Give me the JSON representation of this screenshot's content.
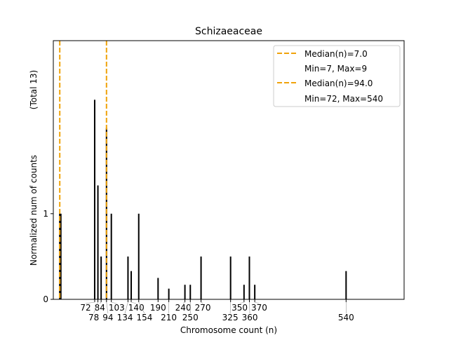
{
  "chart_data": {
    "type": "bar",
    "title": "Schizaeaceae",
    "xlabel": "Chromosome count (n)",
    "ylabel": "Normalized num of counts",
    "ylabel_total": "(Total 13)",
    "xlim": [
      -5,
      648
    ],
    "ylim": [
      0,
      3.02
    ],
    "yticks": [
      0,
      1
    ],
    "xticks": [
      72,
      78,
      84,
      94,
      103,
      134,
      140,
      154,
      190,
      210,
      240,
      250,
      270,
      325,
      350,
      360,
      370,
      540
    ],
    "bars": [
      {
        "x": 7,
        "y": 1.0
      },
      {
        "x": 9,
        "y": 1.0
      },
      {
        "x": 72,
        "y": 2.33
      },
      {
        "x": 78,
        "y": 1.33
      },
      {
        "x": 84,
        "y": 0.5
      },
      {
        "x": 94,
        "y": 2.0
      },
      {
        "x": 103,
        "y": 1.0
      },
      {
        "x": 134,
        "y": 0.5
      },
      {
        "x": 140,
        "y": 0.33
      },
      {
        "x": 154,
        "y": 1.0
      },
      {
        "x": 190,
        "y": 0.25
      },
      {
        "x": 210,
        "y": 0.125
      },
      {
        "x": 240,
        "y": 0.17
      },
      {
        "x": 250,
        "y": 0.17
      },
      {
        "x": 270,
        "y": 0.5
      },
      {
        "x": 325,
        "y": 0.5
      },
      {
        "x": 350,
        "y": 0.17
      },
      {
        "x": 360,
        "y": 0.5
      },
      {
        "x": 370,
        "y": 0.17
      },
      {
        "x": 540,
        "y": 0.33
      }
    ],
    "medians": [
      7.0,
      94.0
    ],
    "legend": {
      "placement": "top-right",
      "entries": [
        {
          "label": "Median(n)=7.0",
          "sub": "Min=7, Max=9"
        },
        {
          "label": "Median(n)=94.0",
          "sub": "Min=72, Max=540"
        }
      ]
    },
    "colors": {
      "median": "#f0a30a",
      "bar": "#000000"
    }
  }
}
